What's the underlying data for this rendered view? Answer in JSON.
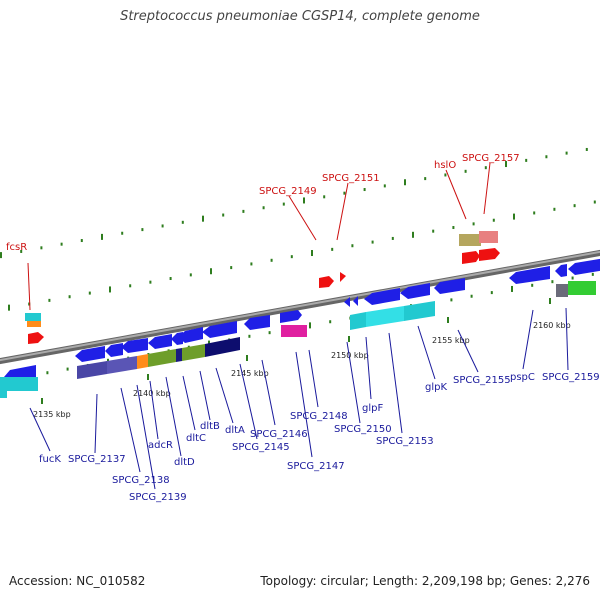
{
  "title": "Streptococcus pneumoniae CGSP14, complete genome",
  "accession": "Accession: NC_010582",
  "summary": "Topology: circular; Length: 2,209,198 bp; Genes: 2,276",
  "colors": {
    "backbone": "#888888",
    "gene_blue": "#1f1fe6",
    "tick_green": "#2e7d1e",
    "label_blue": "#1a1a9c",
    "label_red": "#cc1111"
  },
  "scale_ticks": [
    {
      "label": "2135 kbp",
      "pos": 2135
    },
    {
      "label": "2140 kbp",
      "pos": 2140
    },
    {
      "label": "2145 kbp",
      "pos": 2145
    },
    {
      "label": "2150 kbp",
      "pos": 2150
    },
    {
      "label": "2155 kbp",
      "pos": 2155
    },
    {
      "label": "2160 kbp",
      "pos": 2160
    }
  ],
  "gene_labels_blue": [
    {
      "label": "fucK"
    },
    {
      "label": "SPCG_2137"
    },
    {
      "label": "SPCG_2138"
    },
    {
      "label": "SPCG_2139"
    },
    {
      "label": "adcR"
    },
    {
      "label": "dltD"
    },
    {
      "label": "dltC"
    },
    {
      "label": "dltB"
    },
    {
      "label": "dltA"
    },
    {
      "label": "SPCG_2145"
    },
    {
      "label": "SPCG_2146"
    },
    {
      "label": "SPCG_2147"
    },
    {
      "label": "SPCG_2148"
    },
    {
      "label": "SPCG_2150"
    },
    {
      "label": "glpF"
    },
    {
      "label": "SPCG_2153"
    },
    {
      "label": "glpK"
    },
    {
      "label": "SPCG_2155"
    },
    {
      "label": "pspC"
    },
    {
      "label": "SPCG_2159"
    }
  ],
  "gene_labels_red": [
    {
      "label": "fcsR"
    },
    {
      "label": "SPCG_2149"
    },
    {
      "label": "SPCG_2151"
    },
    {
      "label": "hslO"
    },
    {
      "label": "SPCG_2157"
    }
  ]
}
